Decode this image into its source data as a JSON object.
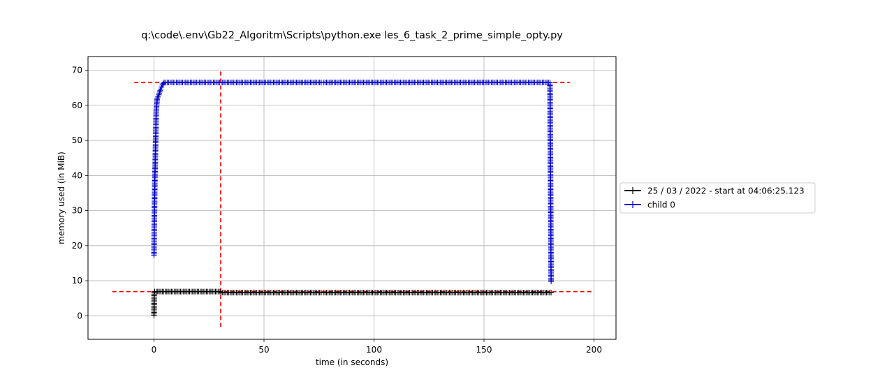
{
  "chart_data": {
    "type": "line",
    "title": "q:\\code\\.env\\Gb22_Algoritm\\Scripts\\python.exe les_6_task_2_prime_simple_opty.py",
    "xlabel": "time (in seconds)",
    "ylabel": "memory used (in MiB)",
    "xlim": [
      -30,
      210
    ],
    "ylim": [
      -6.7,
      73.9
    ],
    "xticks": [
      0,
      50,
      100,
      150,
      200
    ],
    "yticks": [
      0,
      10,
      20,
      30,
      40,
      50,
      60,
      70
    ],
    "grid": true,
    "legend_position": "outside-right",
    "series": [
      {
        "name": "25 / 03 / 2022 - start at 04:06:25.123",
        "color": "#000000",
        "marker": "+",
        "x": [
          0,
          0.1,
          0.3,
          30,
          30.5,
          76,
          77,
          180.5
        ],
        "y": [
          0.1,
          6.6,
          6.9,
          6.9,
          6.6,
          6.6,
          6.6,
          6.6
        ]
      },
      {
        "name": "child 0",
        "color": "#0000cc",
        "marker": "+",
        "x": [
          0,
          0.2,
          0.4,
          0.6,
          0.8,
          1.0,
          1.2,
          1.5,
          1.8,
          2.2,
          2.6,
          3.0,
          3.4,
          3.8,
          4.2,
          4.6,
          76,
          77,
          180,
          180.5
        ],
        "y": [
          17.2,
          29.5,
          39,
          45,
          51.5,
          58,
          60,
          62,
          62.4,
          63,
          63.8,
          64.6,
          65.2,
          65.8,
          66.2,
          66.5,
          66.5,
          66.5,
          66.5,
          9.8
        ]
      }
    ],
    "reference_lines": [
      {
        "orientation": "horizontal",
        "value": 66.5,
        "from": -9,
        "to": 189,
        "color": "#ff0000",
        "style": "dashed"
      },
      {
        "orientation": "horizontal",
        "value": 6.9,
        "from": -19,
        "to": 200,
        "color": "#ff0000",
        "style": "dashed"
      },
      {
        "orientation": "vertical",
        "value": 30.3,
        "from": -3.2,
        "to": 69.8,
        "color": "#ff0000",
        "style": "dashed"
      }
    ]
  }
}
